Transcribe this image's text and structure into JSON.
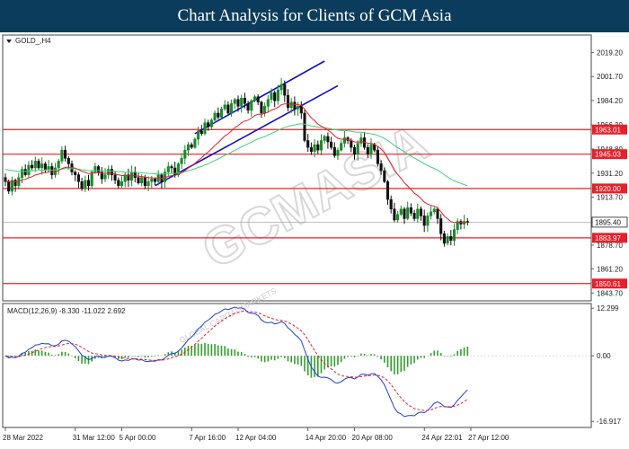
{
  "header": {
    "title": "Chart Analysis for Clients of GCM Asia"
  },
  "watermark": {
    "line1": "GCMASIA",
    "line2": "GLOBAL CAPITAL MARKETS"
  },
  "chart_data": [
    {
      "type": "candlestick",
      "symbol_label": "GOLD_,H4",
      "ylim": [
        1838,
        2032
      ],
      "yticks": [
        2019.2,
        2001.7,
        1984.2,
        1966.3,
        1948.8,
        1931.2,
        1913.7,
        1878.7,
        1861.2,
        1843.7
      ],
      "xticks": [
        {
          "label": "28 Mar 2022",
          "index": 0
        },
        {
          "label": "31 Mar 12:00",
          "index": 21
        },
        {
          "label": "5 Apr 00:00",
          "index": 35
        },
        {
          "label": "7 Apr 16:00",
          "index": 56
        },
        {
          "label": "12 Apr 04:00",
          "index": 70
        },
        {
          "label": "14 Apr 20:00",
          "index": 91
        },
        {
          "label": "20 Apr 08:00",
          "index": 105
        },
        {
          "label": "24 Apr 22:01",
          "index": 126
        },
        {
          "label": "27 Apr 12:00",
          "index": 140
        }
      ],
      "current_price": 1895.4,
      "levels": [
        1963.01,
        1945.03,
        1920.0,
        1883.97,
        1850.61
      ],
      "level_color": "#e8202a",
      "close": [
        1925.0,
        1918.0,
        1926.0,
        1922.0,
        1928.0,
        1934.0,
        1930.0,
        1937.0,
        1935.0,
        1940.0,
        1935.0,
        1938.0,
        1934.0,
        1936.0,
        1930.0,
        1935.0,
        1940.0,
        1948.0,
        1942.0,
        1938.0,
        1932.0,
        1930.0,
        1925.0,
        1920.0,
        1926.0,
        1922.0,
        1932.0,
        1936.0,
        1932.0,
        1927.0,
        1930.0,
        1934.0,
        1930.0,
        1926.0,
        1922.0,
        1925.0,
        1930.0,
        1926.0,
        1932.0,
        1928.0,
        1924.0,
        1928.0,
        1922.0,
        1925.0,
        1927.0,
        1925.0,
        1930.0,
        1925.0,
        1932.0,
        1936.0,
        1935.0,
        1930.0,
        1938.0,
        1942.0,
        1948.0,
        1952.0,
        1950.0,
        1956.0,
        1962.0,
        1960.0,
        1968.0,
        1965.0,
        1970.0,
        1975.0,
        1972.0,
        1978.0,
        1981.0,
        1975.0,
        1982.0,
        1985.0,
        1980.0,
        1986.0,
        1982.0,
        1977.0,
        1984.0,
        1987.0,
        1983.0,
        1975.0,
        1980.0,
        1985.0,
        1990.0,
        1984.0,
        1992.0,
        1996.0,
        1988.0,
        1979.0,
        1983.0,
        1978.0,
        1980.0,
        1975.0,
        1955.0,
        1950.0,
        1947.0,
        1952.0,
        1948.0,
        1955.0,
        1958.0,
        1954.0,
        1950.0,
        1944.0,
        1948.0,
        1953.0,
        1957.0,
        1955.0,
        1950.0,
        1945.0,
        1953.0,
        1957.0,
        1950.0,
        1945.0,
        1952.0,
        1948.0,
        1938.0,
        1933.0,
        1925.0,
        1912.0,
        1905.0,
        1897.0,
        1901.0,
        1905.0,
        1898.0,
        1906.0,
        1902.0,
        1898.0,
        1905.0,
        1900.0,
        1893.0,
        1900.0,
        1903.0,
        1905.0,
        1898.0,
        1887.0,
        1880.0,
        1885.0,
        1882.0,
        1890.0,
        1896.0,
        1894.0,
        1896.0,
        1895.4
      ],
      "ma_fast": {
        "color": "#e8202a"
      },
      "ma_slow": {
        "color": "#3cd27a"
      },
      "channel_color": "#1010c8",
      "candle_up_color": "#1a8a2a",
      "candle_down_color": "#111111",
      "ma_fast_values": [
        1926.0,
        1925.1,
        1925.1,
        1924.8,
        1925.1,
        1926.2,
        1926.7,
        1927.8,
        1928.6,
        1929.8,
        1930.4,
        1931.3,
        1931.6,
        1932.1,
        1931.9,
        1932.2,
        1933.0,
        1934.6,
        1935.3,
        1935.6,
        1935.3,
        1934.8,
        1933.8,
        1932.5,
        1931.8,
        1930.9,
        1931.0,
        1931.5,
        1931.6,
        1931.1,
        1931.0,
        1931.3,
        1931.2,
        1930.7,
        1929.9,
        1929.4,
        1929.4,
        1929.1,
        1929.4,
        1929.3,
        1928.9,
        1928.8,
        1928.2,
        1927.9,
        1927.8,
        1927.5,
        1927.8,
        1927.5,
        1928.0,
        1928.8,
        1929.4,
        1929.5,
        1930.3,
        1931.4,
        1933.0,
        1934.9,
        1936.4,
        1938.3,
        1940.5,
        1942.3,
        1944.8,
        1946.6,
        1948.9,
        1951.4,
        1953.4,
        1955.9,
        1958.3,
        1959.9,
        1962.1,
        1964.4,
        1965.9,
        1967.9,
        1969.2,
        1969.9,
        1971.4,
        1973.2,
        1974.1,
        1974.2,
        1974.7,
        1975.7,
        1977.2,
        1977.9,
        1979.3,
        1981.1,
        1981.8,
        1981.6,
        1981.7,
        1981.4,
        1981.3,
        1980.6,
        1977.8,
        1974.6,
        1971.6,
        1969.4,
        1967.0,
        1965.4,
        1964.2,
        1962.6,
        1960.8,
        1958.3,
        1956.6,
        1956.0,
        1955.8,
        1955.7,
        1955.1,
        1954.0,
        1953.9,
        1954.3,
        1953.9,
        1953.0,
        1952.8,
        1952.3,
        1950.7,
        1948.8,
        1946.1,
        1942.1,
        1938.0,
        1933.6,
        1930.3,
        1927.5,
        1924.1,
        1921.8,
        1919.2,
        1916.6,
        1914.9,
        1912.7,
        1910.0,
        1908.6,
        1907.7,
        1907.1,
        1905.8,
        1903.0,
        1899.8,
        1897.9,
        1895.9,
        1895.2,
        1895.3,
        1895.2,
        1895.3,
        1895.3
      ],
      "ma_slow_values": [
        1934.0,
        1933.4,
        1933.1,
        1932.7,
        1932.6,
        1932.6,
        1932.5,
        1932.7,
        1932.8,
        1933.1,
        1933.2,
        1933.3,
        1933.4,
        1933.5,
        1933.4,
        1933.5,
        1933.7,
        1934.2,
        1934.5,
        1934.6,
        1934.5,
        1934.4,
        1934.0,
        1933.6,
        1933.4,
        1933.0,
        1933.0,
        1933.1,
        1933.1,
        1932.9,
        1932.8,
        1932.9,
        1932.8,
        1932.6,
        1932.3,
        1932.1,
        1932.0,
        1931.9,
        1931.9,
        1931.8,
        1931.6,
        1931.5,
        1931.2,
        1931.0,
        1930.9,
        1930.7,
        1930.7,
        1930.5,
        1930.6,
        1930.8,
        1931.0,
        1931.0,
        1931.3,
        1931.7,
        1932.3,
        1933.0,
        1933.6,
        1934.4,
        1935.3,
        1936.1,
        1937.2,
        1938.1,
        1939.2,
        1940.4,
        1941.5,
        1942.8,
        1944.1,
        1945.2,
        1946.5,
        1947.9,
        1949.0,
        1950.4,
        1951.6,
        1952.6,
        1953.8,
        1955.1,
        1956.2,
        1957.0,
        1957.9,
        1959.0,
        1960.2,
        1961.2,
        1962.4,
        1963.7,
        1964.6,
        1965.2,
        1965.9,
        1966.4,
        1966.9,
        1967.3,
        1966.9,
        1966.3,
        1965.7,
        1965.3,
        1964.8,
        1964.5,
        1964.3,
        1964.0,
        1963.6,
        1963.0,
        1962.6,
        1962.4,
        1962.3,
        1962.1,
        1961.8,
        1961.3,
        1961.1,
        1961.0,
        1960.7,
        1960.2,
        1959.9,
        1959.5,
        1958.7,
        1957.7,
        1956.5,
        1955.0,
        1953.3,
        1951.4,
        1949.8,
        1948.3,
        1946.6,
        1945.2,
        1943.7,
        1942.2,
        1940.9,
        1939.5,
        1938.0,
        1936.8,
        1935.6,
        1934.6,
        1933.3,
        1931.7,
        1930.0,
        1928.4,
        1926.8,
        1925.6,
        1924.6,
        1923.7,
        1922.8,
        1922.0
      ]
    },
    {
      "type": "macd",
      "label": "MACD(12,26,9) -8.330 -11.022 2.692",
      "ylim": [
        -18.5,
        13.5
      ],
      "yticks": [
        12.299,
        0.0,
        -16.917
      ],
      "histogram_color": "#33a02c",
      "macd_line_color": "#1f3fe0",
      "signal_line_color": "#e8202a"
    }
  ]
}
